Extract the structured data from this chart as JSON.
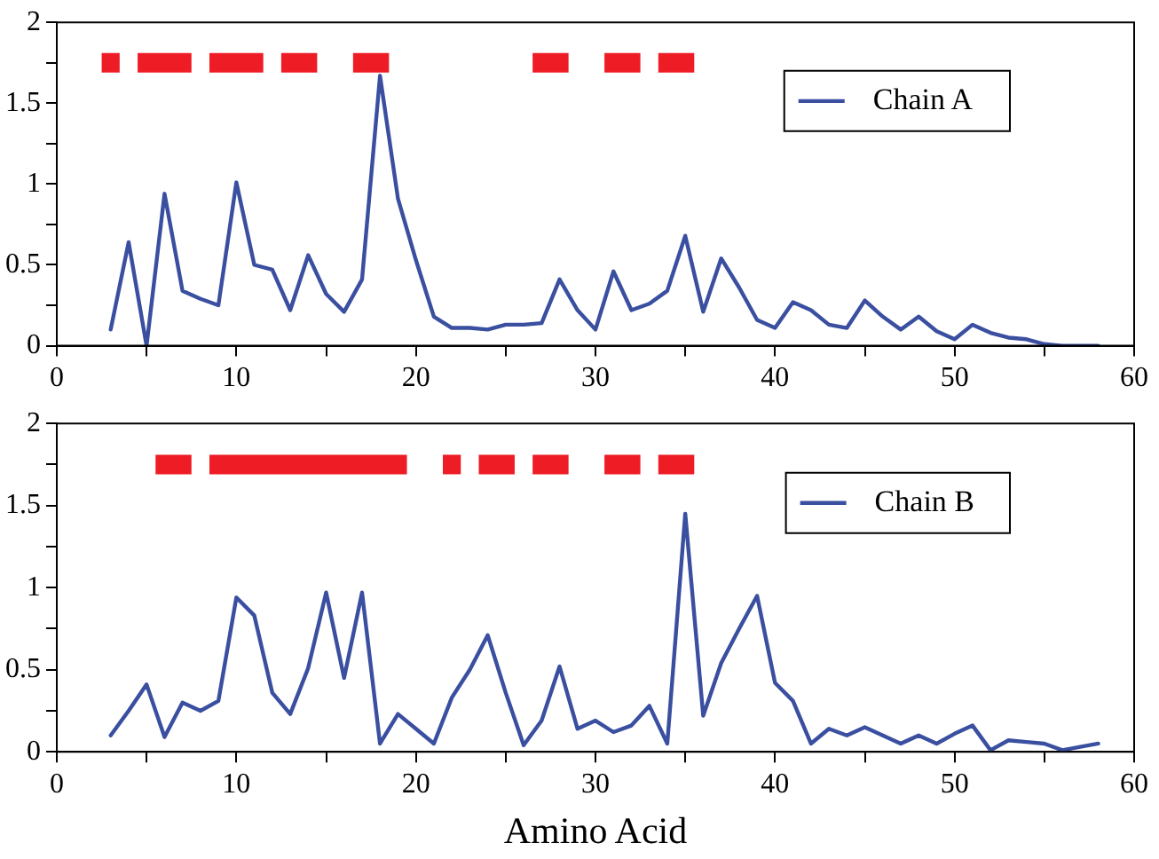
{
  "chart_data": [
    {
      "type": "line",
      "xlim": [
        0,
        60
      ],
      "ylim": [
        0,
        2
      ],
      "xticks": [
        0,
        {
          "value": 5,
          "label": null
        },
        10,
        {
          "value": 15,
          "label": null
        },
        20,
        {
          "value": 25,
          "label": null
        },
        30,
        {
          "value": 35,
          "label": null
        },
        40,
        {
          "value": 45,
          "label": null
        },
        50,
        {
          "value": 55,
          "label": null
        },
        60
      ],
      "yticks": [
        0,
        {
          "value": 0.25,
          "label": null
        },
        0.5,
        {
          "value": 0.75,
          "label": null
        },
        1,
        {
          "value": 1.25,
          "label": null
        },
        1.5,
        {
          "value": 1.75,
          "label": null
        },
        2
      ],
      "grid": false,
      "legend": "top right",
      "marker": "none",
      "line_style": "solid",
      "series": [
        {
          "name": "Chain A",
          "color": "#3a4fa0",
          "x": [
            3,
            4,
            5,
            6,
            7,
            8,
            9,
            10,
            11,
            12,
            13,
            14,
            15,
            16,
            17,
            18,
            19,
            20,
            21,
            22,
            23,
            24,
            25,
            26,
            27,
            28,
            29,
            30,
            31,
            32,
            33,
            34,
            35,
            36,
            37,
            38,
            39,
            40,
            41,
            42,
            43,
            44,
            45,
            46,
            47,
            48,
            49,
            50,
            51,
            52,
            53,
            54,
            55,
            56,
            57,
            58
          ],
          "values": [
            0.1,
            0.64,
            0.0,
            0.94,
            0.34,
            0.29,
            0.25,
            1.01,
            0.5,
            0.47,
            0.22,
            0.56,
            0.32,
            0.21,
            0.41,
            1.67,
            0.91,
            0.53,
            0.18,
            0.11,
            0.11,
            0.1,
            0.13,
            0.13,
            0.14,
            0.41,
            0.22,
            0.1,
            0.46,
            0.22,
            0.26,
            0.34,
            0.68,
            0.21,
            0.54,
            0.36,
            0.16,
            0.11,
            0.27,
            0.22,
            0.13,
            0.11,
            0.28,
            0.18,
            0.1,
            0.18,
            0.09,
            0.04,
            0.13,
            0.08,
            0.05,
            0.04,
            0.01,
            0.0,
            0.0,
            0.0
          ]
        },
        {
          "type": "line",
          "color": "#ee1c25",
          "x": [
            2.5,
            3.5
          ],
          "values": [
            1.75,
            1.75
          ]
        },
        {
          "type": "line",
          "color": "#ee1c25",
          "x": [
            4.5,
            7.5
          ],
          "values": [
            1.75,
            1.75
          ]
        },
        {
          "type": "line",
          "color": "#ee1c25",
          "x": [
            8.5,
            11.5
          ],
          "values": [
            1.75,
            1.75
          ]
        },
        {
          "type": "line",
          "color": "#ee1c25",
          "x": [
            12.5,
            14.5
          ],
          "values": [
            1.75,
            1.75
          ]
        },
        {
          "type": "line",
          "color": "#ee1c25",
          "x": [
            16.5,
            18.5
          ],
          "values": [
            1.75,
            1.75
          ]
        },
        {
          "type": "line",
          "color": "#ee1c25",
          "x": [
            26.5,
            28.5
          ],
          "values": [
            1.75,
            1.75
          ]
        },
        {
          "type": "line",
          "color": "#ee1c25",
          "x": [
            30.5,
            32.5
          ],
          "values": [
            1.75,
            1.75
          ]
        },
        {
          "type": "line",
          "color": "#ee1c25",
          "x": [
            33.5,
            35.5
          ],
          "values": [
            1.75,
            1.75
          ]
        }
      ]
    },
    {
      "type": "line",
      "xlabel": "Amino Acid",
      "xlim": [
        0,
        60
      ],
      "ylim": [
        0,
        2
      ],
      "xticks": [
        0,
        {
          "value": 5,
          "label": null
        },
        10,
        {
          "value": 15,
          "label": null
        },
        20,
        {
          "value": 25,
          "label": null
        },
        30,
        {
          "value": 35,
          "label": null
        },
        40,
        {
          "value": 45,
          "label": null
        },
        50,
        {
          "value": 55,
          "label": null
        },
        60
      ],
      "yticks": [
        0,
        {
          "value": 0.25,
          "label": null
        },
        0.5,
        {
          "value": 0.75,
          "label": null
        },
        1,
        {
          "value": 1.25,
          "label": null
        },
        1.5,
        {
          "value": 1.75,
          "label": null
        },
        2
      ],
      "grid": false,
      "legend": "top right",
      "marker": "none",
      "line_style": "solid",
      "series": [
        {
          "name": "Chain B",
          "color": "#3a4fa0",
          "x": [
            3,
            4,
            5,
            6,
            7,
            8,
            9,
            10,
            11,
            12,
            13,
            14,
            15,
            16,
            17,
            18,
            19,
            20,
            21,
            22,
            23,
            24,
            25,
            26,
            27,
            28,
            29,
            30,
            31,
            32,
            33,
            34,
            35,
            36,
            37,
            38,
            39,
            40,
            41,
            42,
            43,
            44,
            45,
            46,
            47,
            48,
            49,
            50,
            51,
            52,
            53,
            54,
            55,
            56,
            57,
            58
          ],
          "values": [
            0.1,
            0.25,
            0.41,
            0.09,
            0.3,
            0.25,
            0.31,
            0.94,
            0.83,
            0.36,
            0.23,
            0.51,
            0.97,
            0.45,
            0.97,
            0.05,
            0.23,
            0.14,
            0.05,
            0.33,
            0.5,
            0.71,
            0.36,
            0.04,
            0.19,
            0.52,
            0.14,
            0.19,
            0.12,
            0.16,
            0.28,
            0.05,
            1.45,
            0.22,
            0.54,
            0.75,
            0.95,
            0.42,
            0.31,
            0.05,
            0.14,
            0.1,
            0.15,
            0.1,
            0.05,
            0.1,
            0.05,
            0.11,
            0.16,
            0.01,
            0.07,
            0.06,
            0.05,
            0.01,
            0.03,
            0.05
          ]
        },
        {
          "type": "line",
          "color": "#ee1c25",
          "x": [
            5.5,
            7.5
          ],
          "values": [
            1.75,
            1.75
          ]
        },
        {
          "type": "line",
          "color": "#ee1c25",
          "x": [
            8.5,
            19.5
          ],
          "values": [
            1.75,
            1.75
          ]
        },
        {
          "type": "line",
          "color": "#ee1c25",
          "x": [
            21.5,
            22.5
          ],
          "values": [
            1.75,
            1.75
          ]
        },
        {
          "type": "line",
          "color": "#ee1c25",
          "x": [
            23.5,
            25.5
          ],
          "values": [
            1.75,
            1.75
          ]
        },
        {
          "type": "line",
          "color": "#ee1c25",
          "x": [
            26.5,
            28.5
          ],
          "values": [
            1.75,
            1.75
          ]
        },
        {
          "type": "line",
          "color": "#ee1c25",
          "x": [
            30.5,
            32.5
          ],
          "values": [
            1.75,
            1.75
          ]
        },
        {
          "type": "line",
          "color": "#ee1c25",
          "x": [
            33.5,
            35.5
          ],
          "values": [
            1.75,
            1.75
          ]
        }
      ]
    }
  ]
}
